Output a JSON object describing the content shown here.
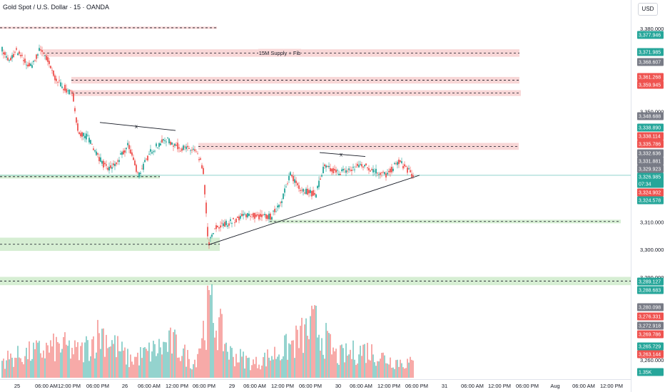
{
  "header": {
    "title": "Gold Spot / U.S. Dollar · 15 · OANDA",
    "currency": "USD"
  },
  "colors": {
    "up": "#26a69a",
    "down": "#ef5350",
    "supply_zone": "#f8d7d7",
    "demand_zone": "#d6eed3",
    "last_price_line": "#80cbc4"
  },
  "chart_data": {
    "type": "candlestick",
    "symbol": "Gold Spot / U.S. Dollar",
    "timeframe": "15",
    "source": "OANDA",
    "x_tick_labels": [
      "25",
      "06:00 AM",
      "12:00 PM",
      "06:00 PM",
      "26",
      "06:00 AM",
      "12:00 PM",
      "06:00 PM",
      "29",
      "06:00 AM",
      "12:00 PM",
      "06:00 PM",
      "30",
      "06:00 AM",
      "12:00 PM",
      "06:00 PM",
      "31",
      "06:00 AM",
      "12:00 PM",
      "06:00 PM",
      "Aug",
      "06:00 AM",
      "12:00 PM"
    ],
    "y_tick_labels": [
      {
        "value": 3380,
        "label": "3,380.000"
      },
      {
        "value": 3350,
        "label": "3,350.000"
      },
      {
        "value": 3310,
        "label": "3,310.000"
      },
      {
        "value": 3300,
        "label": "3,300.000"
      },
      {
        "value": 3290,
        "label": "3,290.000"
      },
      {
        "value": 3260,
        "label": "3,260.000"
      }
    ],
    "ylim": [
      3256,
      3384
    ],
    "price_labels": [
      {
        "label": "3,377.946",
        "value": 3377.946,
        "color": "#26a69a"
      },
      {
        "label": "3,371.985",
        "value": 3371.985,
        "color": "#26a69a"
      },
      {
        "label": "3,368.607",
        "value": 3368.607,
        "color": "#787b86"
      },
      {
        "label": "3,361.268",
        "value": 3361.268,
        "color": "#ef5350"
      },
      {
        "label": "3,359.945",
        "value": 3359.945,
        "color": "#ef5350"
      },
      {
        "label": "3,348.688",
        "value": 3348.688,
        "color": "#787b86"
      },
      {
        "label": "3,338.890",
        "value": 3338.89,
        "color": "#26a69a"
      },
      {
        "label": "3,338.114",
        "value": 3338.114,
        "color": "#ef5350"
      },
      {
        "label": "3,335.786",
        "value": 3335.786,
        "color": "#ef5350"
      },
      {
        "label": "3,332.636",
        "value": 3332.636,
        "color": "#787b86"
      },
      {
        "label": "3,331.881",
        "value": 3331.881,
        "color": "#787b86"
      },
      {
        "label": "3,329.923",
        "value": 3329.923,
        "color": "#787b86"
      },
      {
        "label": "3,326.985",
        "value": 3326.985,
        "color": "#26a69a"
      },
      {
        "label": "07:34",
        "value": 3325.6,
        "color": "#26a69a"
      },
      {
        "label": "3,324.902",
        "value": 3324.902,
        "color": "#ef5350"
      },
      {
        "label": "3,324.578",
        "value": 3324.578,
        "color": "#26a69a"
      },
      {
        "label": "3,289.127",
        "value": 3289.127,
        "color": "#26a69a"
      },
      {
        "label": "3,288.683",
        "value": 3288.683,
        "color": "#26a69a"
      },
      {
        "label": "3,280.098",
        "value": 3280.098,
        "color": "#787b86"
      },
      {
        "label": "3,276.331",
        "value": 3276.331,
        "color": "#ef5350"
      },
      {
        "label": "3,272.918",
        "value": 3272.918,
        "color": "#787b86"
      },
      {
        "label": "3,269.786",
        "value": 3269.786,
        "color": "#ef5350"
      },
      {
        "label": "3,265.729",
        "value": 3265.729,
        "color": "#26a69a"
      },
      {
        "label": "3,263.144",
        "value": 3263.144,
        "color": "#ef5350"
      },
      {
        "label": "1.35K",
        "value": 3257.4,
        "color": "#26a69a"
      }
    ],
    "last_price": 3326.985,
    "zones": [
      {
        "kind": "supply",
        "low": 3380.0,
        "high": 3380.8,
        "from": 0,
        "to": 304
      },
      {
        "kind": "supply",
        "low": 3369.9,
        "high": 3372.6,
        "from": 60,
        "to": 728,
        "label": "15M Supply + Fib"
      },
      {
        "kind": "supply",
        "low": 3360.2,
        "high": 3362.6,
        "from": 100,
        "to": 728
      },
      {
        "kind": "supply",
        "low": 3355.7,
        "high": 3357.8,
        "from": 100,
        "to": 730
      },
      {
        "kind": "supply",
        "low": 3336.2,
        "high": 3338.7,
        "from": 278,
        "to": 727
      },
      {
        "kind": "demand",
        "low": 3325.8,
        "high": 3327.2,
        "from": 0,
        "to": 224
      },
      {
        "kind": "demand",
        "low": 3309.6,
        "high": 3310.9,
        "from": 378,
        "to": 870
      },
      {
        "kind": "demand",
        "low": 3299.6,
        "high": 3304.4,
        "from": 0,
        "to": 308
      },
      {
        "kind": "demand",
        "low": 3287.2,
        "high": 3290.2,
        "from": 0,
        "to": 884
      }
    ],
    "annotations": [
      {
        "type": "text",
        "text": "15M Supply + Fib"
      },
      {
        "type": "text",
        "text": "x"
      },
      {
        "type": "text",
        "text": "x"
      }
    ],
    "trendlines": [
      {
        "name": "ascending-support",
        "from": {
          "bar": 290,
          "price": 3301.8
        },
        "to": {
          "bar": 586,
          "price": 3327.0
        }
      },
      {
        "name": "equal-highs-left",
        "from": {
          "bar": 138,
          "price": 3346.1
        },
        "to": {
          "bar": 244,
          "price": 3343.2
        }
      },
      {
        "name": "equal-highs-right",
        "from": {
          "bar": 446,
          "price": 3335.2
        },
        "to": {
          "bar": 510,
          "price": 3333.8
        }
      }
    ],
    "price_path": [
      {
        "bar": 0,
        "price": 3373
      },
      {
        "bar": 10,
        "price": 3368
      },
      {
        "bar": 20,
        "price": 3372
      },
      {
        "bar": 30,
        "price": 3369
      },
      {
        "bar": 40,
        "price": 3366
      },
      {
        "bar": 55,
        "price": 3373
      },
      {
        "bar": 62,
        "price": 3370
      },
      {
        "bar": 75,
        "price": 3362
      },
      {
        "bar": 90,
        "price": 3358
      },
      {
        "bar": 100,
        "price": 3356
      },
      {
        "bar": 108,
        "price": 3342
      },
      {
        "bar": 120,
        "price": 3341
      },
      {
        "bar": 135,
        "price": 3334
      },
      {
        "bar": 148,
        "price": 3329
      },
      {
        "bar": 160,
        "price": 3331
      },
      {
        "bar": 178,
        "price": 3338
      },
      {
        "bar": 192,
        "price": 3327
      },
      {
        "bar": 210,
        "price": 3336
      },
      {
        "bar": 230,
        "price": 3340
      },
      {
        "bar": 250,
        "price": 3337
      },
      {
        "bar": 270,
        "price": 3336
      },
      {
        "bar": 282,
        "price": 3330
      },
      {
        "bar": 290,
        "price": 3302
      },
      {
        "bar": 300,
        "price": 3308
      },
      {
        "bar": 320,
        "price": 3310
      },
      {
        "bar": 345,
        "price": 3313
      },
      {
        "bar": 360,
        "price": 3312
      },
      {
        "bar": 378,
        "price": 3312
      },
      {
        "bar": 392,
        "price": 3318
      },
      {
        "bar": 405,
        "price": 3327
      },
      {
        "bar": 420,
        "price": 3322
      },
      {
        "bar": 440,
        "price": 3320
      },
      {
        "bar": 452,
        "price": 3330
      },
      {
        "bar": 470,
        "price": 3328
      },
      {
        "bar": 490,
        "price": 3329
      },
      {
        "bar": 505,
        "price": 3331
      },
      {
        "bar": 520,
        "price": 3329
      },
      {
        "bar": 540,
        "price": 3327
      },
      {
        "bar": 556,
        "price": 3332
      },
      {
        "bar": 566,
        "price": 3330
      },
      {
        "bar": 578,
        "price": 3326
      }
    ],
    "volume_peaks": [
      {
        "bar": 0,
        "v": 0.25
      },
      {
        "bar": 40,
        "v": 0.35
      },
      {
        "bar": 85,
        "v": 0.45
      },
      {
        "bar": 110,
        "v": 0.35
      },
      {
        "bar": 140,
        "v": 0.65
      },
      {
        "bar": 180,
        "v": 0.25
      },
      {
        "bar": 240,
        "v": 0.5
      },
      {
        "bar": 270,
        "v": 0.2
      },
      {
        "bar": 292,
        "v": 1.0
      },
      {
        "bar": 320,
        "v": 0.35
      },
      {
        "bar": 355,
        "v": 0.2
      },
      {
        "bar": 405,
        "v": 0.45
      },
      {
        "bar": 440,
        "v": 0.75
      },
      {
        "bar": 470,
        "v": 0.3
      },
      {
        "bar": 510,
        "v": 0.4
      },
      {
        "bar": 545,
        "v": 0.25
      },
      {
        "bar": 578,
        "v": 0.2
      }
    ]
  }
}
